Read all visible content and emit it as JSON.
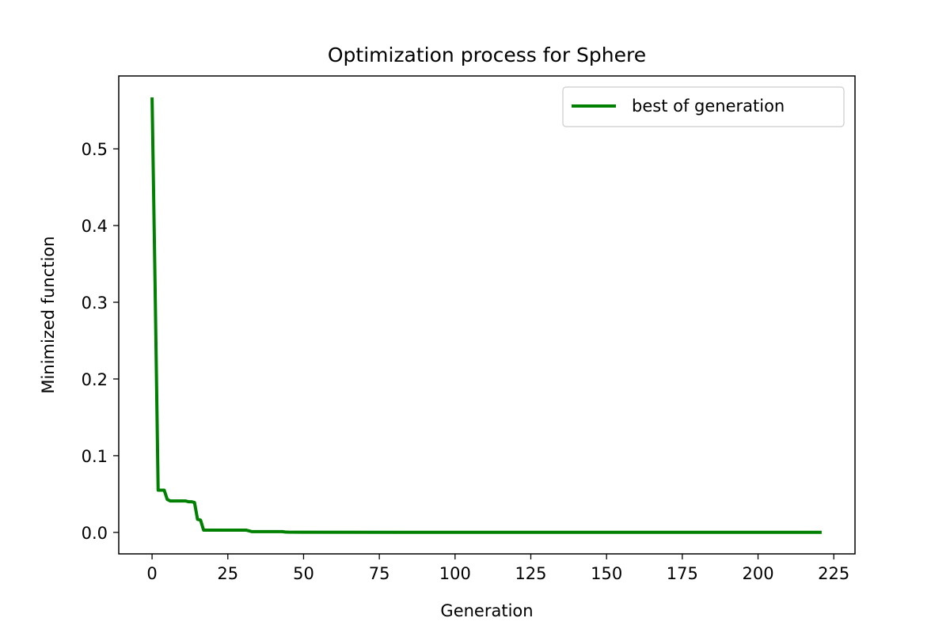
{
  "chart_data": {
    "type": "line",
    "title": "Optimization process for Sphere",
    "xlabel": "Generation",
    "ylabel": "Minimized function",
    "xlim": [
      -11,
      232
    ],
    "ylim": [
      -0.028,
      0.595
    ],
    "xticks": [
      0,
      25,
      50,
      75,
      100,
      125,
      150,
      175,
      200,
      225
    ],
    "xtick_labels": [
      "0",
      "25",
      "50",
      "75",
      "100",
      "125",
      "150",
      "175",
      "200",
      "225"
    ],
    "yticks": [
      0.0,
      0.1,
      0.2,
      0.3,
      0.4,
      0.5
    ],
    "ytick_labels": [
      "0.0",
      "0.1",
      "0.2",
      "0.3",
      "0.4",
      "0.5"
    ],
    "grid": false,
    "legend_position": "upper right",
    "series": [
      {
        "name": "best of generation",
        "color": "#008000",
        "x": [
          0,
          1,
          2,
          3,
          4,
          5,
          6,
          7,
          8,
          9,
          10,
          11,
          12,
          13,
          14,
          15,
          16,
          17,
          18,
          20,
          25,
          30,
          31,
          32,
          33,
          35,
          40,
          43,
          44,
          45,
          50,
          100,
          150,
          200,
          221
        ],
        "y": [
          0.567,
          0.32,
          0.055,
          0.055,
          0.055,
          0.043,
          0.041,
          0.041,
          0.041,
          0.041,
          0.041,
          0.041,
          0.04,
          0.04,
          0.039,
          0.017,
          0.016,
          0.003,
          0.003,
          0.003,
          0.003,
          0.003,
          0.003,
          0.002,
          0.001,
          0.001,
          0.001,
          0.001,
          0.0005,
          0.0003,
          0.0002,
          0.0001,
          0.0001,
          0.0001,
          0.0001
        ]
      }
    ]
  }
}
